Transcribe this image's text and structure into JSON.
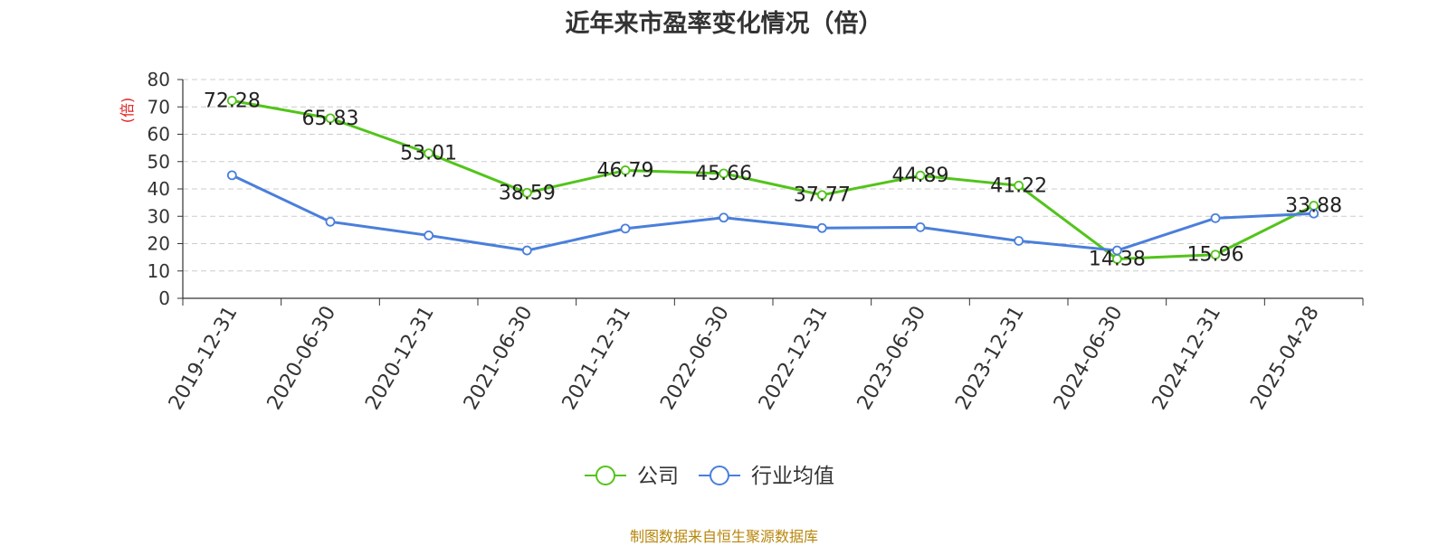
{
  "chart_data": {
    "type": "line",
    "title": "近年来市盈率变化情况（倍）",
    "ylabel": "(倍)",
    "ylim": [
      0,
      80
    ],
    "yticks": [
      0,
      10,
      20,
      30,
      40,
      50,
      60,
      70,
      80
    ],
    "categories": [
      "2019-12-31",
      "2020-06-30",
      "2020-12-31",
      "2021-06-30",
      "2021-12-31",
      "2022-06-30",
      "2022-12-31",
      "2023-06-30",
      "2023-12-31",
      "2024-06-30",
      "2024-12-31",
      "2025-04-28"
    ],
    "series": [
      {
        "name": "公司",
        "color": "#52c41a",
        "values": [
          72.28,
          65.83,
          53.01,
          38.59,
          46.79,
          45.66,
          37.77,
          44.89,
          41.22,
          14.38,
          15.96,
          33.88
        ],
        "labels": [
          "72.28",
          "65.83",
          "53.01",
          "38.59",
          "46.79",
          "45.66",
          "37.77",
          "44.89",
          "41.22",
          "14.38",
          "15.96",
          "33.88"
        ]
      },
      {
        "name": "行业均值",
        "color": "#4a7fdb",
        "values": [
          45.0,
          28.0,
          23.0,
          17.5,
          25.5,
          29.5,
          25.7,
          26.0,
          21.0,
          17.5,
          29.3,
          31.0
        ]
      }
    ],
    "grid": true,
    "legend": "bottom-center",
    "source": "制图数据来自恒生聚源数据库"
  }
}
